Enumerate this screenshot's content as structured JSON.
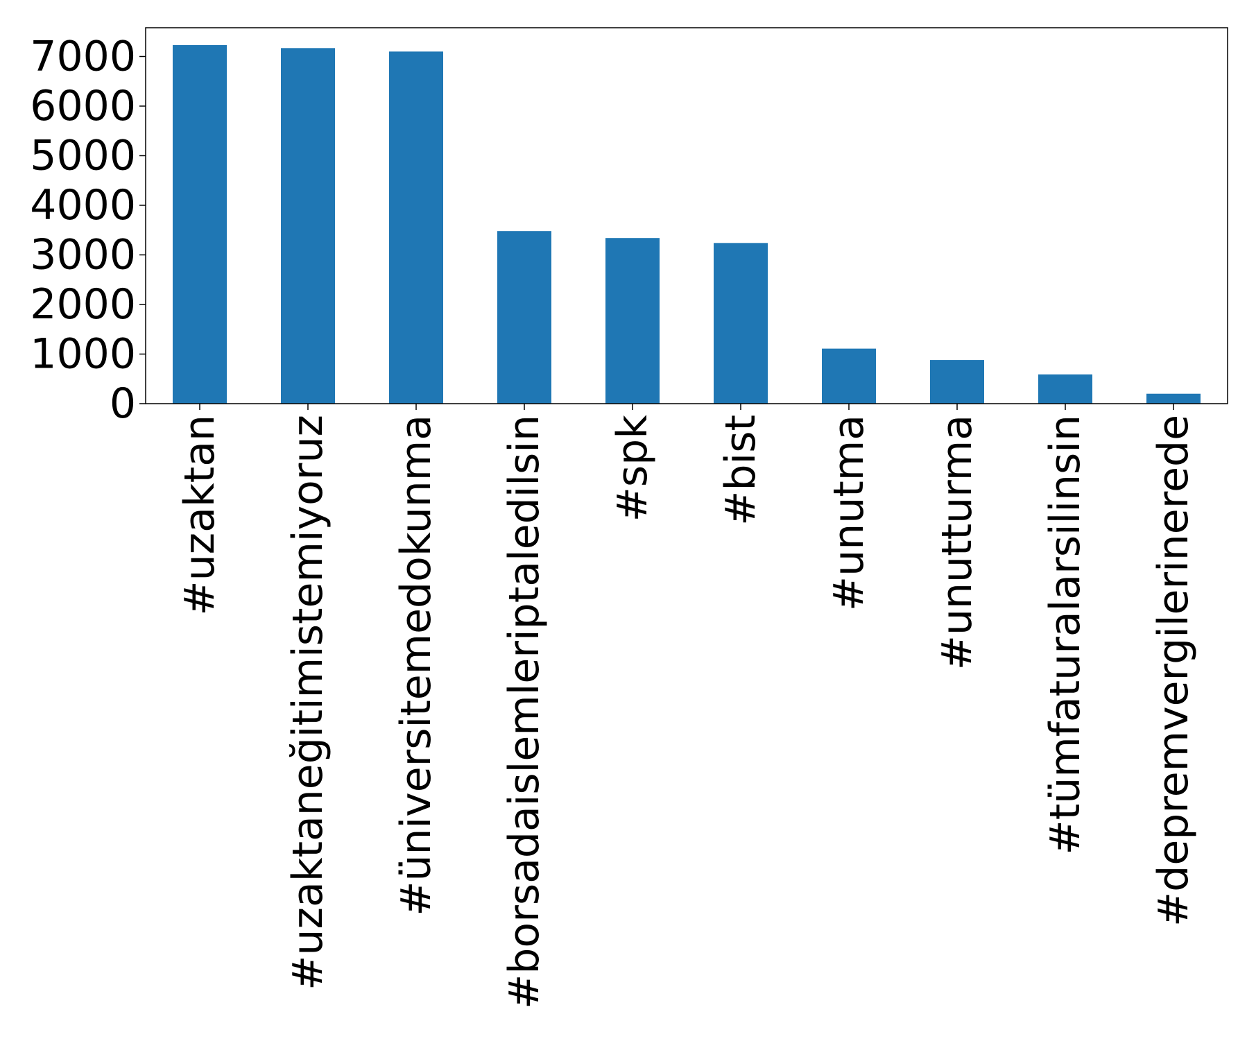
{
  "chart_data": {
    "type": "bar",
    "title": "",
    "xlabel": "",
    "ylabel": "",
    "categories": [
      "#uzaktan",
      "#uzaktaneğitimistemiyoruz",
      "#üniversitemedokunma",
      "#borsadaislemleriptaledilsin",
      "#spk",
      "#bist",
      "#unutma",
      "#unutturma",
      "#tümfaturalarsilinsin",
      "#depremvergilerinerede"
    ],
    "values": [
      7230,
      7170,
      7100,
      3480,
      3340,
      3240,
      1110,
      880,
      590,
      200
    ],
    "ylim": [
      0,
      7580
    ],
    "yticks": [
      0,
      1000,
      2000,
      3000,
      4000,
      5000,
      6000,
      7000
    ],
    "ytick_labels": [
      "0",
      "1000",
      "2000",
      "3000",
      "4000",
      "5000",
      "6000",
      "7000"
    ],
    "bar_color": "#1f77b4",
    "grid": false,
    "legend": "none"
  }
}
